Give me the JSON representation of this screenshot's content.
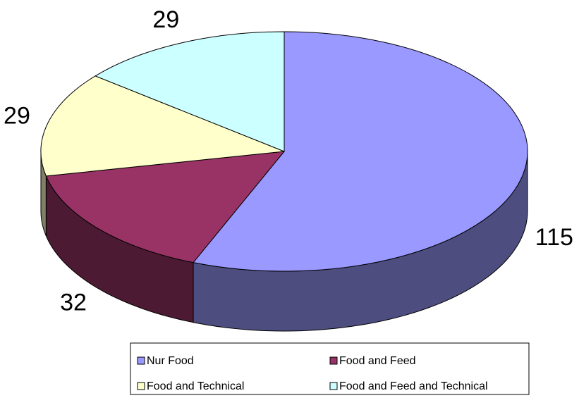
{
  "chart_data": {
    "type": "pie",
    "categories": [
      "Nur Food",
      "Food and Feed",
      "Food and Technical",
      "Food and Feed and Technical"
    ],
    "values": [
      115,
      32,
      29,
      29
    ],
    "colors": [
      "#9999ff",
      "#993366",
      "#ffffcc",
      "#ccffff"
    ],
    "legend": "bottom"
  }
}
